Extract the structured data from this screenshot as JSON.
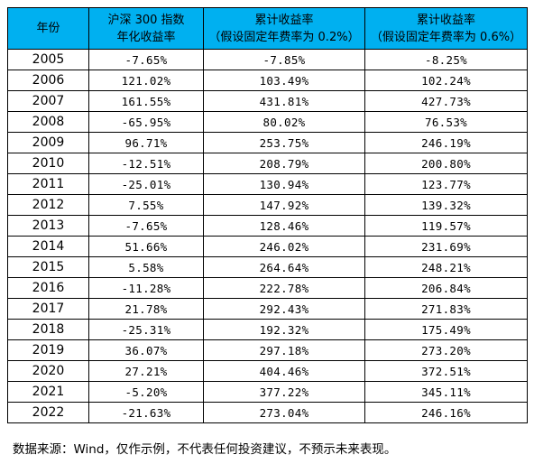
{
  "table": {
    "headers": [
      {
        "lines": [
          "年份"
        ]
      },
      {
        "lines": [
          "沪深 300 指数",
          "年化收益率"
        ]
      },
      {
        "lines": [
          "累计收益率",
          "（假设固定年费率为 0.2%）"
        ]
      },
      {
        "lines": [
          "累计收益率",
          "（假设固定年费率为 0.6%）"
        ]
      }
    ],
    "rows": [
      [
        "2005",
        "-7.65%",
        "-7.85%",
        "-8.25%"
      ],
      [
        "2006",
        "121.02%",
        "103.49%",
        "102.24%"
      ],
      [
        "2007",
        "161.55%",
        "431.81%",
        "427.73%"
      ],
      [
        "2008",
        "-65.95%",
        "80.02%",
        "76.53%"
      ],
      [
        "2009",
        "96.71%",
        "253.75%",
        "246.19%"
      ],
      [
        "2010",
        "-12.51%",
        "208.79%",
        "200.80%"
      ],
      [
        "2011",
        "-25.01%",
        "130.94%",
        "123.77%"
      ],
      [
        "2012",
        "7.55%",
        "147.92%",
        "139.32%"
      ],
      [
        "2013",
        "-7.65%",
        "128.46%",
        "119.57%"
      ],
      [
        "2014",
        "51.66%",
        "246.02%",
        "231.69%"
      ],
      [
        "2015",
        "5.58%",
        "264.64%",
        "248.21%"
      ],
      [
        "2016",
        "-11.28%",
        "222.78%",
        "206.84%"
      ],
      [
        "2017",
        "21.78%",
        "292.43%",
        "271.83%"
      ],
      [
        "2018",
        "-25.31%",
        "192.32%",
        "175.49%"
      ],
      [
        "2019",
        "36.07%",
        "297.18%",
        "273.20%"
      ],
      [
        "2020",
        "27.21%",
        "404.46%",
        "372.51%"
      ],
      [
        "2021",
        "-5.20%",
        "377.22%",
        "345.11%"
      ],
      [
        "2022",
        "-21.63%",
        "273.04%",
        "246.16%"
      ]
    ]
  },
  "footnote": "数据来源：Wind，仅作示例，不代表任何投资建议，不预示未来表现。",
  "colors": {
    "header_bg": "#00b0f0",
    "border": "#000000"
  }
}
